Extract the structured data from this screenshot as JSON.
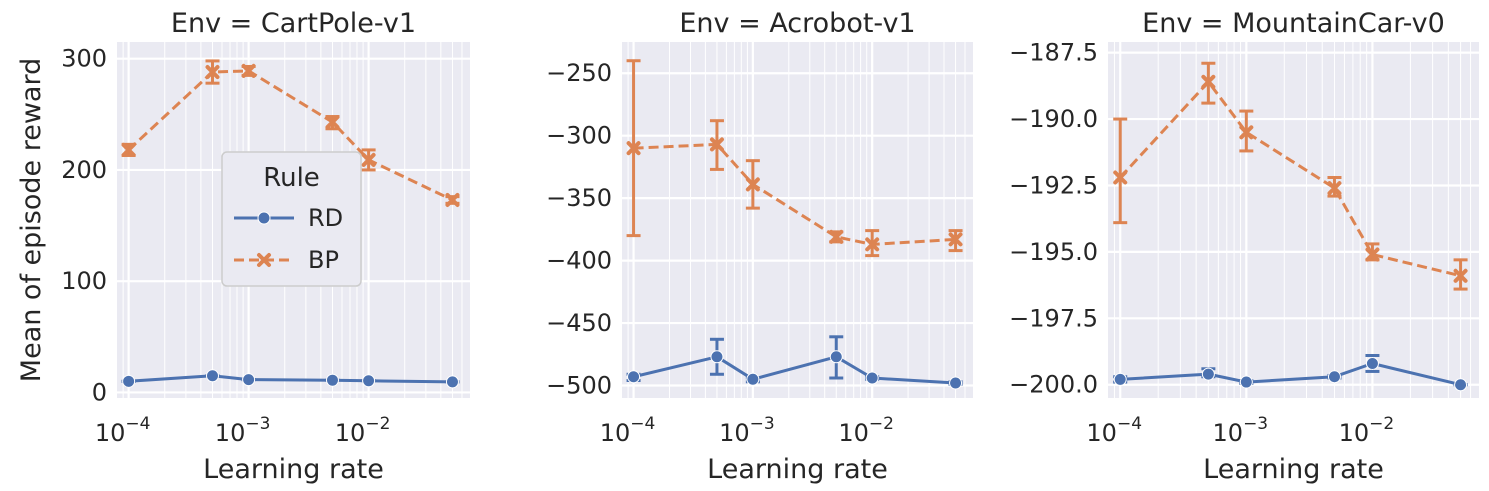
{
  "chart_data": [
    {
      "type": "line",
      "title": "Env = CartPole-v1",
      "xlabel": "Learning rate",
      "ylabel": "Mean of episode reward",
      "xscale": "log",
      "xlim": [
        8e-05,
        0.07
      ],
      "ylim": [
        -5,
        315
      ],
      "yticks": [
        {
          "v": 0,
          "label": "0"
        },
        {
          "v": 100,
          "label": "100"
        },
        {
          "v": 200,
          "label": "200"
        },
        {
          "v": 300,
          "label": "300"
        }
      ],
      "xticks": [
        {
          "v": 0.0001,
          "base": "10",
          "exp": "−4"
        },
        {
          "v": 0.001,
          "base": "10",
          "exp": "−3"
        },
        {
          "v": 0.01,
          "base": "10",
          "exp": "−2"
        }
      ],
      "x": [
        0.0001,
        0.0005,
        0.001,
        0.005,
        0.01,
        0.05
      ],
      "series": [
        {
          "name": "RD",
          "color": "#4c72b0",
          "marker": "circle",
          "dashed": false,
          "values": [
            10,
            15,
            11.5,
            11,
            10.5,
            9.5
          ],
          "errors": [
            [
              10,
              10
            ],
            [
              15,
              15
            ],
            [
              11.5,
              11.5
            ],
            [
              11,
              11
            ],
            [
              10.5,
              10.5
            ],
            [
              9.5,
              9.5
            ]
          ]
        },
        {
          "name": "BP",
          "color": "#dd8452",
          "marker": "x",
          "dashed": true,
          "values": [
            218,
            288,
            289,
            243,
            209,
            173
          ],
          "errors": [
            [
              213,
              223
            ],
            [
              278,
              298
            ],
            [
              285,
              293
            ],
            [
              237,
              248
            ],
            [
              200,
              218
            ],
            [
              170,
              176
            ]
          ]
        }
      ],
      "legend": {
        "title": "Rule",
        "placement": "center"
      }
    },
    {
      "type": "line",
      "title": "Env = Acrobot-v1",
      "xlabel": "Learning rate",
      "ylabel": "",
      "xscale": "log",
      "xlim": [
        8e-05,
        0.07
      ],
      "ylim": [
        -510,
        -225
      ],
      "yticks": [
        {
          "v": -500,
          "label": "−500"
        },
        {
          "v": -450,
          "label": "−450"
        },
        {
          "v": -400,
          "label": "−400"
        },
        {
          "v": -350,
          "label": "−350"
        },
        {
          "v": -300,
          "label": "−300"
        },
        {
          "v": -250,
          "label": "−250"
        }
      ],
      "xticks": [
        {
          "v": 0.0001,
          "base": "10",
          "exp": "−4"
        },
        {
          "v": 0.001,
          "base": "10",
          "exp": "−3"
        },
        {
          "v": 0.01,
          "base": "10",
          "exp": "−2"
        }
      ],
      "x": [
        0.0001,
        0.0005,
        0.001,
        0.005,
        0.01,
        0.05
      ],
      "series": [
        {
          "name": "RD",
          "color": "#4c72b0",
          "marker": "circle",
          "dashed": false,
          "values": [
            -493,
            -477,
            -495,
            -477,
            -494,
            -498
          ],
          "errors": [
            [
              -496,
              -491
            ],
            [
              -491,
              -463
            ],
            [
              -497,
              -494
            ],
            [
              -494,
              -461
            ],
            [
              -495,
              -493
            ],
            [
              -499,
              -497
            ]
          ]
        },
        {
          "name": "BP",
          "color": "#dd8452",
          "marker": "x",
          "dashed": true,
          "values": [
            -310,
            -307,
            -339,
            -381,
            -387,
            -383
          ],
          "errors": [
            [
              -380,
              -240
            ],
            [
              -327,
              -288
            ],
            [
              -358,
              -320
            ],
            [
              -385,
              -377
            ],
            [
              -396,
              -376
            ],
            [
              -392,
              -376
            ]
          ]
        }
      ]
    },
    {
      "type": "line",
      "title": "Env = MountainCar-v0",
      "xlabel": "Learning rate",
      "ylabel": "",
      "xscale": "log",
      "xlim": [
        8e-05,
        0.07
      ],
      "ylim": [
        -200.5,
        -187.1
      ],
      "yticks": [
        {
          "v": -200,
          "label": "−200.0"
        },
        {
          "v": -197.5,
          "label": "−197.5"
        },
        {
          "v": -195,
          "label": "−195.0"
        },
        {
          "v": -192.5,
          "label": "−192.5"
        },
        {
          "v": -190,
          "label": "−190.0"
        },
        {
          "v": -187.5,
          "label": "−187.5"
        }
      ],
      "xticks": [
        {
          "v": 0.0001,
          "base": "10",
          "exp": "−4"
        },
        {
          "v": 0.001,
          "base": "10",
          "exp": "−3"
        },
        {
          "v": 0.01,
          "base": "10",
          "exp": "−2"
        }
      ],
      "x": [
        0.0001,
        0.0005,
        0.001,
        0.005,
        0.01,
        0.05
      ],
      "series": [
        {
          "name": "RD",
          "color": "#4c72b0",
          "marker": "circle",
          "dashed": false,
          "values": [
            -199.8,
            -199.6,
            -199.9,
            -199.7,
            -199.2,
            -200
          ],
          "errors": [
            [
              -199.9,
              -199.7
            ],
            [
              -199.7,
              -199.4
            ],
            [
              -199.95,
              -199.85
            ],
            [
              -199.75,
              -199.65
            ],
            [
              -199.5,
              -198.9
            ],
            [
              -200,
              -200
            ]
          ]
        },
        {
          "name": "BP",
          "color": "#dd8452",
          "marker": "x",
          "dashed": true,
          "values": [
            -192.2,
            -188.6,
            -190.5,
            -192.6,
            -195.1,
            -195.9
          ],
          "errors": [
            [
              -193.9,
              -190.0
            ],
            [
              -189.4,
              -187.9
            ],
            [
              -191.2,
              -189.7
            ],
            [
              -192.9,
              -192.2
            ],
            [
              -195.3,
              -194.7
            ],
            [
              -196.4,
              -195.3
            ]
          ]
        }
      ]
    }
  ]
}
